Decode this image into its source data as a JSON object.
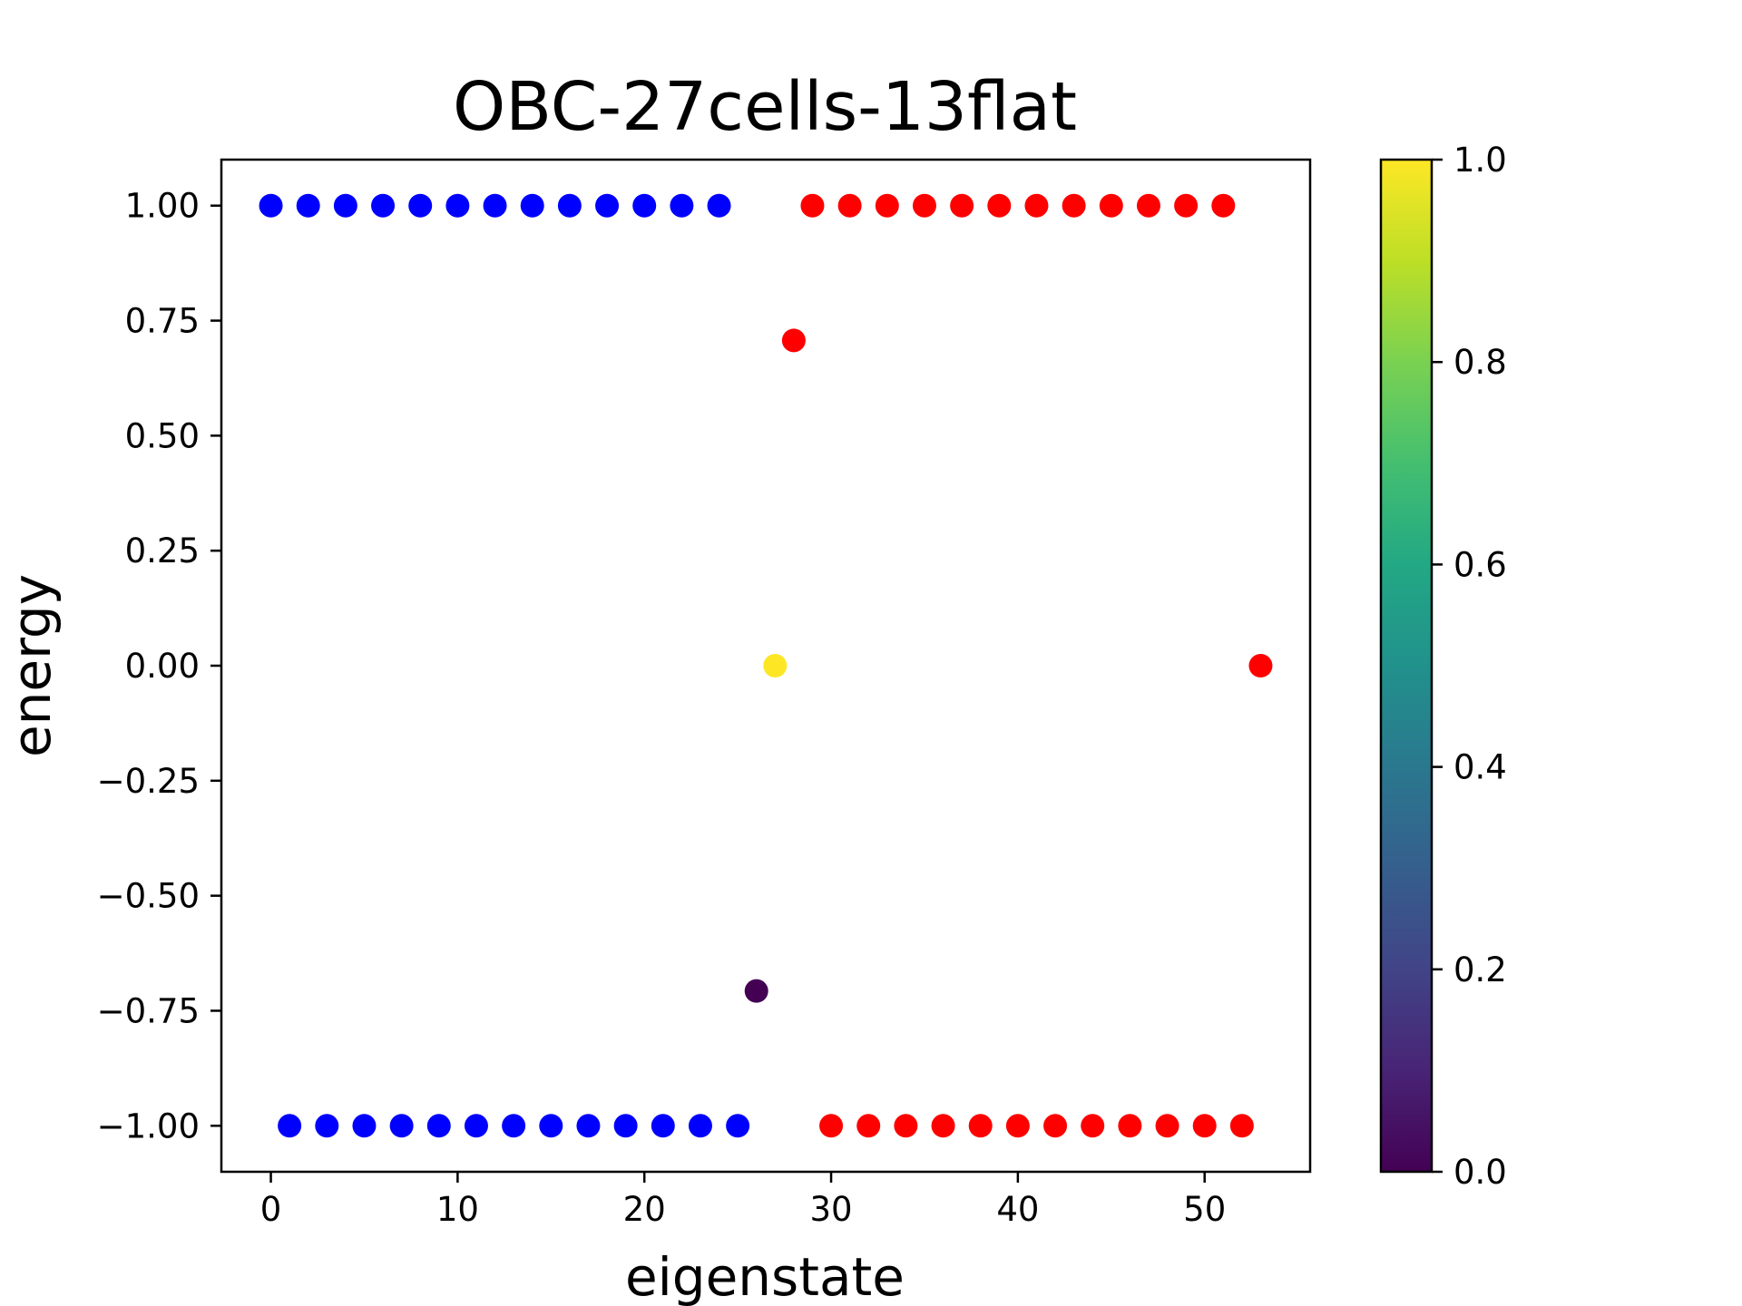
{
  "chart_data": {
    "type": "scatter",
    "title": "OBC-27cells-13flat",
    "xlabel": "eigenstate",
    "ylabel": "energy",
    "xlim": [
      -2.65,
      55.65
    ],
    "ylim": [
      -1.1,
      1.1
    ],
    "xticks": [
      0,
      10,
      20,
      30,
      40,
      50
    ],
    "xtick_labels": [
      "0",
      "10",
      "20",
      "30",
      "40",
      "50"
    ],
    "yticks": [
      1.0,
      0.75,
      0.5,
      0.25,
      0.0,
      -0.25,
      -0.5,
      -0.75,
      -1.0
    ],
    "ytick_labels": [
      "1.00",
      "0.75",
      "0.50",
      "0.25",
      "0.00",
      "−0.25",
      "−0.50",
      "−0.75",
      "−1.00"
    ],
    "grid": false,
    "legend": "none",
    "series": [
      {
        "color": "#0000ff",
        "x": [
          0,
          2,
          4,
          6,
          8,
          10,
          12,
          14,
          16,
          18,
          20,
          22,
          24,
          1,
          3,
          5,
          7,
          9,
          11,
          13,
          15,
          17,
          19,
          21,
          23,
          25
        ],
        "y": [
          1,
          1,
          1,
          1,
          1,
          1,
          1,
          1,
          1,
          1,
          1,
          1,
          1,
          -1,
          -1,
          -1,
          -1,
          -1,
          -1,
          -1,
          -1,
          -1,
          -1,
          -1,
          -1,
          -1
        ]
      },
      {
        "color": "#ff0000",
        "x": [
          29,
          31,
          33,
          35,
          37,
          39,
          41,
          43,
          45,
          47,
          49,
          51,
          28,
          53,
          30,
          32,
          34,
          36,
          38,
          40,
          42,
          44,
          46,
          48,
          50,
          52
        ],
        "y": [
          1,
          1,
          1,
          1,
          1,
          1,
          1,
          1,
          1,
          1,
          1,
          1,
          0.707,
          0,
          -1,
          -1,
          -1,
          -1,
          -1,
          -1,
          -1,
          -1,
          -1,
          -1,
          -1,
          -1
        ]
      },
      {
        "color_values": [
          0.0,
          1.0
        ],
        "x": [
          26,
          27
        ],
        "y": [
          -0.707,
          0.0
        ]
      }
    ],
    "colorbar": {
      "colormap": "viridis",
      "range": [
        0.0,
        1.0
      ],
      "ticks": [
        0.0,
        0.2,
        0.4,
        0.6,
        0.8,
        1.0
      ],
      "tick_labels": [
        "0.0",
        "0.2",
        "0.4",
        "0.6",
        "0.8",
        "1.0"
      ]
    }
  }
}
